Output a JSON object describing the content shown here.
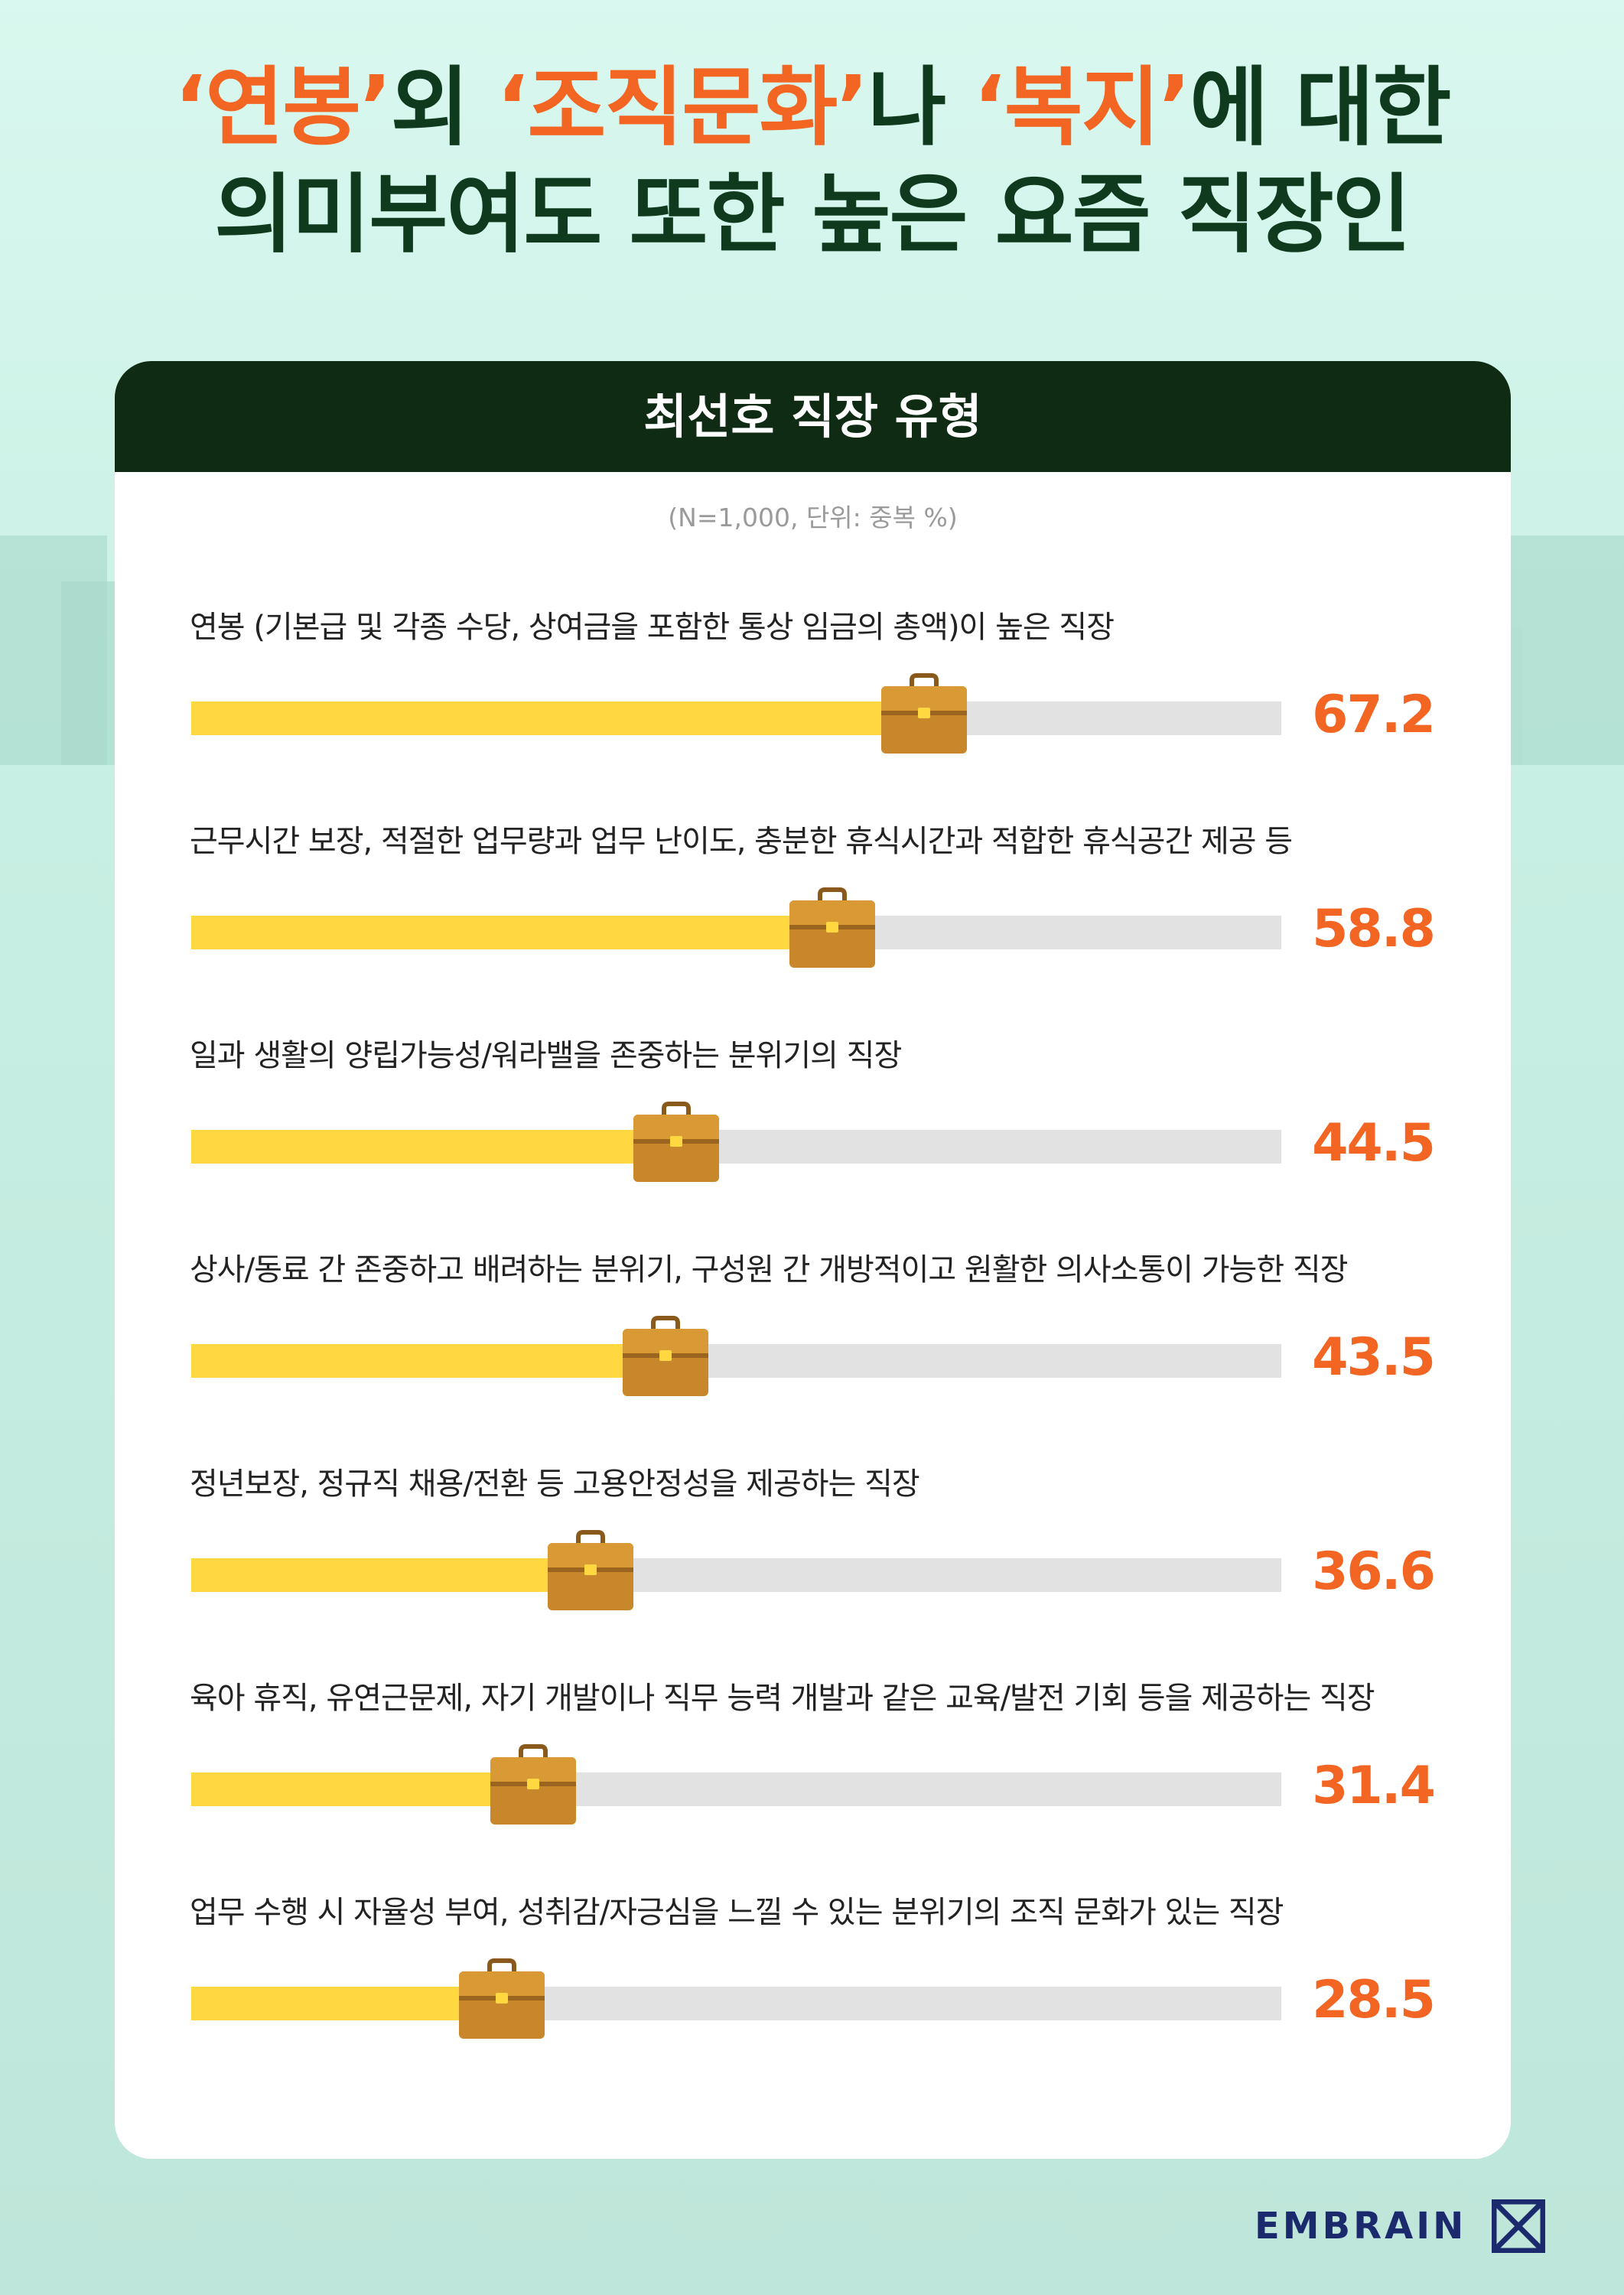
{
  "headline": {
    "line1": [
      {
        "text": "‘연봉’",
        "accent": true
      },
      {
        "text": "외 ",
        "accent": false
      },
      {
        "text": "‘조직문화’",
        "accent": true
      },
      {
        "text": "나 ",
        "accent": false
      },
      {
        "text": "‘복지’",
        "accent": true
      },
      {
        "text": "에 대한",
        "accent": false
      }
    ],
    "line2": "의미부여도 또한 높은 요즘 직장인"
  },
  "colors": {
    "accent": "#f26522",
    "headline_dark": "#0f3a1e",
    "card_header": "#0f2b13",
    "bar_fill": "#ffd740",
    "bar_track": "#e2e2e2",
    "brand": "#1a2a6c"
  },
  "card": {
    "header": "최선호 직장 유형",
    "note": "(N=1,000, 단위: 중복 %)"
  },
  "chart_data": {
    "type": "bar",
    "orientation": "horizontal",
    "title": "최선호 직장 유형",
    "note": "(N=1,000, 단위: 중복 %)",
    "xlim": [
      0,
      100
    ],
    "categories": [
      "연봉 (기본급 및 각종 수당, 상여금을 포함한 통상 임금의 총액)이 높은 직장",
      "근무시간 보장, 적절한 업무량과 업무 난이도, 충분한 휴식시간과 적합한 휴식공간 제공 등",
      "일과 생활의 양립가능성/워라밸을 존중하는 분위기의 직장",
      "상사/동료 간 존중하고 배려하는 분위기, 구성원 간 개방적이고 원활한 의사소통이 가능한 직장",
      "정년보장, 정규직 채용/전환 등 고용안정성을 제공하는 직장",
      "육아 휴직, 유연근문제, 자기 개발이나 직무 능력 개발과 같은 교육/발전 기회 등을 제공하는 직장",
      "업무 수행 시 자율성 부여, 성취감/자긍심을 느낄 수 있는 분위기의 조직 문화가 있는 직장"
    ],
    "values": [
      67.2,
      58.8,
      44.5,
      43.5,
      36.6,
      31.4,
      28.5
    ],
    "value_labels": [
      "67.2",
      "58.8",
      "44.5",
      "43.5",
      "36.6",
      "31.4",
      "28.5"
    ],
    "marker": "briefcase-icon"
  },
  "brand": {
    "name": "EMBRAIN",
    "icon": "embrain-logo-icon"
  }
}
